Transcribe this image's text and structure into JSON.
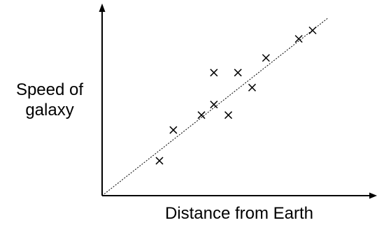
{
  "chart_data": {
    "type": "scatter",
    "title": "",
    "xlabel": "Distance from Earth",
    "ylabel_lines": [
      "Speed of",
      "galaxy"
    ],
    "xlim": [
      0,
      10
    ],
    "ylim": [
      0,
      10
    ],
    "grid": false,
    "legend": "none",
    "points": [
      {
        "x": 1.98,
        "y": 1.85
      },
      {
        "x": 2.46,
        "y": 3.48
      },
      {
        "x": 3.43,
        "y": 4.27
      },
      {
        "x": 3.86,
        "y": 6.52
      },
      {
        "x": 3.86,
        "y": 4.83
      },
      {
        "x": 4.69,
        "y": 6.52
      },
      {
        "x": 4.36,
        "y": 4.27
      },
      {
        "x": 5.18,
        "y": 5.73
      },
      {
        "x": 5.66,
        "y": 7.3
      },
      {
        "x": 6.79,
        "y": 8.31
      },
      {
        "x": 7.27,
        "y": 8.76
      }
    ],
    "trend_line": {
      "style": "dotted",
      "from": {
        "x": 0,
        "y": 0
      },
      "to": {
        "x": 7.82,
        "y": 9.44
      }
    },
    "marker": "x",
    "colors": {
      "axis": "#000000",
      "points": "#000000",
      "trend": "#000000"
    }
  }
}
